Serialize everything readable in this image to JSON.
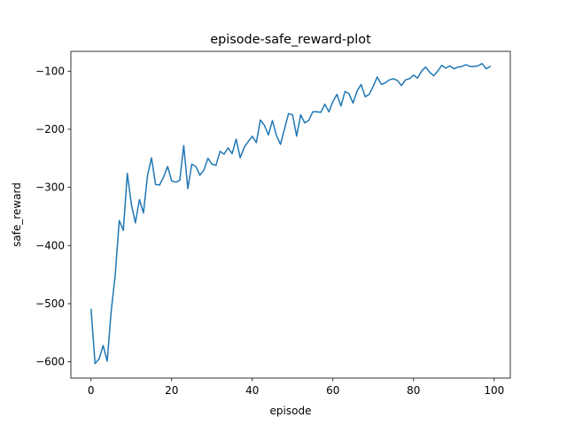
{
  "chart_data": {
    "type": "line",
    "title": "episode-safe_reward-plot",
    "xlabel": "episode",
    "ylabel": "safe_reward",
    "xlim": [
      -5,
      104
    ],
    "ylim": [
      -628,
      -66
    ],
    "xticks": [
      0,
      20,
      40,
      60,
      80,
      100
    ],
    "yticks": [
      -600,
      -500,
      -400,
      -300,
      -200,
      -100
    ],
    "grid": false,
    "legend": "none",
    "colors": {
      "line": "#1f77b4"
    },
    "series": [
      {
        "x": [
          0,
          1,
          2,
          3,
          4,
          5,
          6,
          7,
          8,
          9,
          10,
          11,
          12,
          13,
          14,
          15,
          16,
          17,
          18,
          19,
          20,
          21,
          22,
          23,
          24,
          25,
          26,
          27,
          28,
          29,
          30,
          31,
          32,
          33,
          34,
          35,
          36,
          37,
          38,
          39,
          40,
          41,
          42,
          43,
          44,
          45,
          46,
          47,
          48,
          49,
          50,
          51,
          52,
          53,
          54,
          55,
          56,
          57,
          58,
          59,
          60,
          61,
          62,
          63,
          64,
          65,
          66,
          67,
          68,
          69,
          70,
          71,
          72,
          73,
          74,
          75,
          76,
          77,
          78,
          79,
          80,
          81,
          82,
          83,
          84,
          85,
          86,
          87,
          88,
          89,
          90,
          91,
          92,
          93,
          94,
          95,
          96,
          97,
          98,
          99
        ],
        "values": [
          -510,
          -603,
          -595,
          -572,
          -599,
          -513,
          -450,
          -357,
          -374,
          -276,
          -329,
          -361,
          -321,
          -344,
          -280,
          -249,
          -295,
          -296,
          -282,
          -264,
          -289,
          -291,
          -288,
          -228,
          -302,
          -260,
          -264,
          -279,
          -270,
          -250,
          -260,
          -262,
          -238,
          -243,
          -232,
          -242,
          -217,
          -249,
          -231,
          -221,
          -212,
          -223,
          -184,
          -193,
          -210,
          -185,
          -211,
          -226,
          -199,
          -173,
          -175,
          -212,
          -175,
          -189,
          -185,
          -170,
          -170,
          -171,
          -157,
          -170,
          -152,
          -140,
          -160,
          -135,
          -139,
          -155,
          -134,
          -123,
          -144,
          -140,
          -126,
          -110,
          -123,
          -120,
          -115,
          -113,
          -116,
          -125,
          -115,
          -113,
          -107,
          -112,
          -100,
          -93,
          -102,
          -108,
          -100,
          -90,
          -95,
          -91,
          -96,
          -93,
          -92,
          -89,
          -92,
          -92,
          -91,
          -87,
          -96,
          -92
        ]
      }
    ]
  }
}
